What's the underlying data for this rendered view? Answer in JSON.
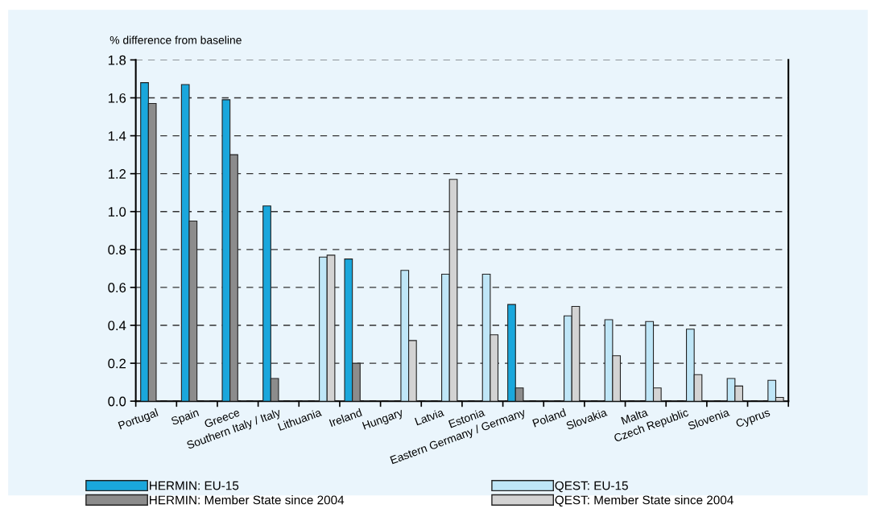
{
  "chart_data": {
    "type": "bar",
    "ylabel": "% difference from baseline",
    "categories": [
      "Portugal",
      "Spain",
      "Greece",
      "Southern Italy / Italy",
      "Lithuania",
      "Ireland",
      "Hungary",
      "Latvia",
      "Estonia",
      "Eastern Germany / Germany",
      "Poland",
      "Slovakia",
      "Malta",
      "Czech Republic",
      "Slovenia",
      "Cyprus"
    ],
    "series": [
      {
        "name": "HERMIN: EU-15",
        "color": "#1aa7dc",
        "values": [
          1.68,
          1.67,
          1.59,
          1.03,
          null,
          0.75,
          null,
          null,
          null,
          0.51,
          null,
          null,
          null,
          null,
          null,
          null
        ]
      },
      {
        "name": "HERMIN: Member State since 2004",
        "color": "#8c8c8c",
        "values": [
          1.57,
          0.95,
          1.3,
          0.12,
          null,
          0.2,
          null,
          null,
          null,
          0.07,
          null,
          null,
          null,
          null,
          null,
          null
        ]
      },
      {
        "name": "QEST: EU-15",
        "color": "#bfe6f7",
        "values": [
          null,
          null,
          null,
          null,
          0.76,
          null,
          0.69,
          0.67,
          0.67,
          null,
          0.45,
          0.43,
          0.42,
          0.38,
          0.12,
          0.11
        ]
      },
      {
        "name": "QEST: Member State since 2004",
        "color": "#d3d3d3",
        "values": [
          null,
          null,
          null,
          null,
          0.77,
          null,
          0.32,
          1.17,
          0.35,
          null,
          0.5,
          0.24,
          0.07,
          0.14,
          0.08,
          0.02
        ]
      }
    ],
    "ylim": [
      0,
      1.8
    ],
    "yticks": [
      {
        "value": 0,
        "label": "0.0"
      },
      0.2,
      0.4,
      0.6,
      0.8,
      {
        "value": 1,
        "label": "1.0"
      },
      1.2,
      1.4,
      1.6,
      1.8
    ],
    "grid": "y",
    "legend": "bottom"
  }
}
